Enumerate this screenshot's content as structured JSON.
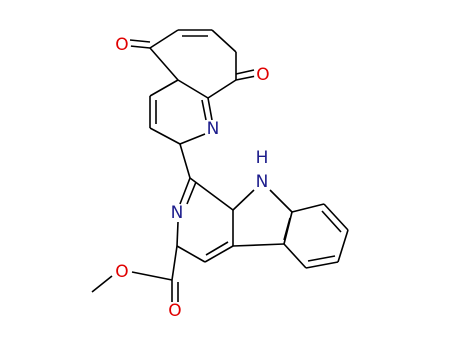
{
  "atoms": {
    "o_left": "O",
    "o_right": "O",
    "n_quinoline": "N",
    "n_indole": "N",
    "h_indole": "H",
    "n_pyridine": "N",
    "o_ester": "O",
    "o_carbonyl": "O"
  }
}
